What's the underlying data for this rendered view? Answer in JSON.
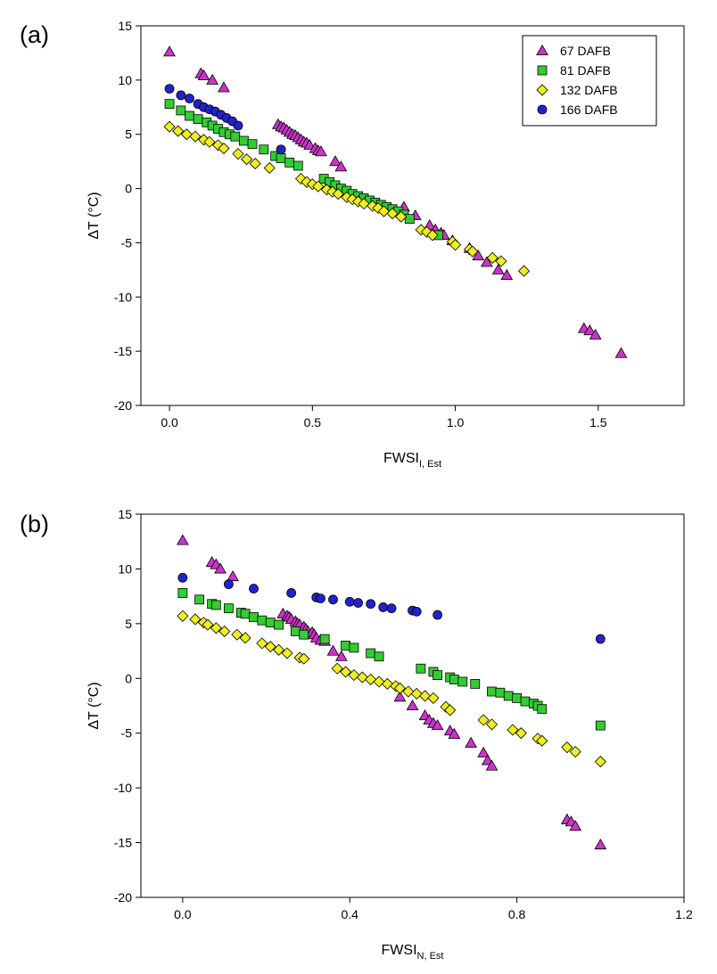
{
  "panels": [
    {
      "letter": "(a)",
      "xlabel": {
        "main": "FWSI",
        "sub": "I, Est"
      },
      "ylabel": "ΔT (°C)",
      "legend": "top-right"
    },
    {
      "letter": "(b)",
      "xlabel": {
        "main": "FWSI",
        "sub": "N, Est"
      },
      "ylabel": "ΔT (°C)",
      "legend": "none"
    }
  ],
  "series_styles": [
    {
      "name": "67 DAFB",
      "marker": "triangle",
      "color": "#cc33cc"
    },
    {
      "name": "81 DAFB",
      "marker": "square",
      "color": "#33cc33"
    },
    {
      "name": "132 DAFB",
      "marker": "diamond",
      "color": "#eeee22"
    },
    {
      "name": "166 DAFB",
      "marker": "circle",
      "color": "#2222cc"
    }
  ],
  "chart_data": [
    {
      "type": "scatter",
      "title": "",
      "xlabel": "FWSI I,Est",
      "ylabel": "ΔT (°C)",
      "xlim": [
        -0.1,
        1.8
      ],
      "ylim": [
        -20,
        15
      ],
      "xticks": [
        "0.0",
        "0.5",
        "1.0",
        "1.5"
      ],
      "yticks": [
        "-20",
        "-15",
        "-10",
        "-5",
        "0",
        "5",
        "10",
        "15"
      ],
      "legend_position": "top-right",
      "grid": false,
      "series": [
        {
          "name": "67 DAFB",
          "points": [
            [
              0.0,
              12.6
            ],
            [
              0.11,
              10.6
            ],
            [
              0.12,
              10.4
            ],
            [
              0.15,
              10.0
            ],
            [
              0.19,
              9.3
            ],
            [
              0.38,
              5.9
            ],
            [
              0.39,
              5.7
            ],
            [
              0.4,
              5.6
            ],
            [
              0.41,
              5.4
            ],
            [
              0.42,
              5.2
            ],
            [
              0.43,
              5.0
            ],
            [
              0.44,
              4.9
            ],
            [
              0.45,
              4.7
            ],
            [
              0.46,
              4.5
            ],
            [
              0.47,
              4.3
            ],
            [
              0.48,
              4.2
            ],
            [
              0.49,
              4.0
            ],
            [
              0.51,
              3.7
            ],
            [
              0.52,
              3.5
            ],
            [
              0.53,
              3.4
            ],
            [
              0.58,
              2.5
            ],
            [
              0.6,
              2.0
            ],
            [
              0.82,
              -1.7
            ],
            [
              0.86,
              -2.5
            ],
            [
              0.91,
              -3.4
            ],
            [
              0.93,
              -3.8
            ],
            [
              0.95,
              -4.1
            ],
            [
              0.96,
              -4.3
            ],
            [
              0.99,
              -4.8
            ],
            [
              1.05,
              -5.5
            ],
            [
              1.08,
              -6.2
            ],
            [
              1.11,
              -6.8
            ],
            [
              1.15,
              -7.5
            ],
            [
              1.18,
              -8.0
            ],
            [
              1.45,
              -12.9
            ],
            [
              1.47,
              -13.1
            ],
            [
              1.49,
              -13.5
            ],
            [
              1.58,
              -15.2
            ]
          ]
        },
        {
          "name": "81 DAFB",
          "points": [
            [
              0.0,
              7.8
            ],
            [
              0.04,
              7.2
            ],
            [
              0.07,
              6.7
            ],
            [
              0.1,
              6.4
            ],
            [
              0.13,
              6.1
            ],
            [
              0.15,
              5.8
            ],
            [
              0.17,
              5.5
            ],
            [
              0.19,
              5.2
            ],
            [
              0.21,
              5.0
            ],
            [
              0.23,
              4.8
            ],
            [
              0.26,
              4.4
            ],
            [
              0.29,
              4.1
            ],
            [
              0.33,
              3.6
            ],
            [
              0.37,
              3.0
            ],
            [
              0.39,
              2.8
            ],
            [
              0.42,
              2.4
            ],
            [
              0.45,
              2.1
            ],
            [
              0.54,
              0.9
            ],
            [
              0.56,
              0.6
            ],
            [
              0.58,
              0.3
            ],
            [
              0.6,
              0.0
            ],
            [
              0.62,
              -0.2
            ],
            [
              0.64,
              -0.5
            ],
            [
              0.66,
              -0.7
            ],
            [
              0.68,
              -0.9
            ],
            [
              0.7,
              -1.1
            ],
            [
              0.72,
              -1.3
            ],
            [
              0.74,
              -1.5
            ],
            [
              0.76,
              -1.7
            ],
            [
              0.78,
              -1.9
            ],
            [
              0.8,
              -2.1
            ],
            [
              0.82,
              -2.4
            ],
            [
              0.84,
              -2.8
            ],
            [
              0.94,
              -4.3
            ]
          ]
        },
        {
          "name": "132 DAFB",
          "points": [
            [
              0.0,
              5.7
            ],
            [
              0.03,
              5.3
            ],
            [
              0.06,
              5.0
            ],
            [
              0.09,
              4.8
            ],
            [
              0.12,
              4.5
            ],
            [
              0.14,
              4.3
            ],
            [
              0.17,
              4.0
            ],
            [
              0.19,
              3.7
            ],
            [
              0.24,
              3.2
            ],
            [
              0.27,
              2.7
            ],
            [
              0.3,
              2.3
            ],
            [
              0.35,
              1.9
            ],
            [
              0.46,
              0.9
            ],
            [
              0.48,
              0.6
            ],
            [
              0.5,
              0.4
            ],
            [
              0.52,
              0.2
            ],
            [
              0.55,
              -0.1
            ],
            [
              0.57,
              -0.3
            ],
            [
              0.59,
              -0.5
            ],
            [
              0.62,
              -0.8
            ],
            [
              0.64,
              -1.0
            ],
            [
              0.66,
              -1.2
            ],
            [
              0.68,
              -1.4
            ],
            [
              0.71,
              -1.6
            ],
            [
              0.73,
              -1.8
            ],
            [
              0.75,
              -2.1
            ],
            [
              0.78,
              -2.3
            ],
            [
              0.81,
              -2.6
            ],
            [
              0.88,
              -3.8
            ],
            [
              0.9,
              -4.0
            ],
            [
              0.92,
              -4.3
            ],
            [
              0.99,
              -4.9
            ],
            [
              1.0,
              -5.2
            ],
            [
              1.05,
              -5.6
            ],
            [
              1.06,
              -5.8
            ],
            [
              1.13,
              -6.4
            ],
            [
              1.16,
              -6.7
            ],
            [
              1.24,
              -7.6
            ]
          ]
        },
        {
          "name": "166 DAFB",
          "points": [
            [
              0.0,
              9.2
            ],
            [
              0.04,
              8.6
            ],
            [
              0.07,
              8.3
            ],
            [
              0.1,
              7.8
            ],
            [
              0.12,
              7.5
            ],
            [
              0.14,
              7.3
            ],
            [
              0.16,
              7.1
            ],
            [
              0.18,
              6.8
            ],
            [
              0.2,
              6.5
            ],
            [
              0.22,
              6.2
            ],
            [
              0.24,
              5.8
            ],
            [
              0.39,
              3.6
            ]
          ]
        }
      ]
    },
    {
      "type": "scatter",
      "title": "",
      "xlabel": "FWSI N,Est",
      "ylabel": "ΔT (°C)",
      "xlim": [
        -0.1,
        1.2
      ],
      "ylim": [
        -20,
        15
      ],
      "xticks": [
        "0.0",
        "0.4",
        "0.8",
        "1.2"
      ],
      "yticks": [
        "-20",
        "-15",
        "-10",
        "-5",
        "0",
        "5",
        "10",
        "15"
      ],
      "legend_position": "none",
      "grid": false,
      "series": [
        {
          "name": "67 DAFB",
          "points": [
            [
              0.0,
              12.6
            ],
            [
              0.07,
              10.6
            ],
            [
              0.08,
              10.4
            ],
            [
              0.09,
              10.0
            ],
            [
              0.12,
              9.3
            ],
            [
              0.24,
              5.9
            ],
            [
              0.25,
              5.7
            ],
            [
              0.255,
              5.6
            ],
            [
              0.26,
              5.4
            ],
            [
              0.27,
              5.2
            ],
            [
              0.275,
              5.0
            ],
            [
              0.28,
              4.9
            ],
            [
              0.29,
              4.7
            ],
            [
              0.295,
              4.5
            ],
            [
              0.3,
              4.3
            ],
            [
              0.31,
              4.2
            ],
            [
              0.315,
              4.0
            ],
            [
              0.32,
              3.7
            ],
            [
              0.33,
              3.5
            ],
            [
              0.34,
              3.4
            ],
            [
              0.36,
              2.5
            ],
            [
              0.38,
              2.0
            ],
            [
              0.52,
              -1.7
            ],
            [
              0.55,
              -2.5
            ],
            [
              0.58,
              -3.4
            ],
            [
              0.59,
              -3.8
            ],
            [
              0.6,
              -4.1
            ],
            [
              0.61,
              -4.3
            ],
            [
              0.64,
              -4.8
            ],
            [
              0.65,
              -5.1
            ],
            [
              0.69,
              -5.9
            ],
            [
              0.72,
              -6.8
            ],
            [
              0.73,
              -7.5
            ],
            [
              0.74,
              -8.0
            ],
            [
              0.92,
              -12.9
            ],
            [
              0.93,
              -13.1
            ],
            [
              0.94,
              -13.5
            ],
            [
              1.0,
              -15.2
            ]
          ]
        },
        {
          "name": "81 DAFB",
          "points": [
            [
              0.0,
              7.8
            ],
            [
              0.04,
              7.2
            ],
            [
              0.07,
              6.8
            ],
            [
              0.08,
              6.7
            ],
            [
              0.11,
              6.4
            ],
            [
              0.14,
              6.0
            ],
            [
              0.15,
              5.9
            ],
            [
              0.17,
              5.6
            ],
            [
              0.19,
              5.3
            ],
            [
              0.21,
              5.1
            ],
            [
              0.23,
              4.9
            ],
            [
              0.27,
              4.3
            ],
            [
              0.29,
              4.0
            ],
            [
              0.34,
              3.6
            ],
            [
              0.39,
              3.0
            ],
            [
              0.41,
              2.8
            ],
            [
              0.45,
              2.3
            ],
            [
              0.47,
              2.0
            ],
            [
              0.57,
              0.9
            ],
            [
              0.6,
              0.6
            ],
            [
              0.61,
              0.3
            ],
            [
              0.64,
              0.1
            ],
            [
              0.65,
              -0.1
            ],
            [
              0.67,
              -0.3
            ],
            [
              0.7,
              -0.5
            ],
            [
              0.74,
              -1.2
            ],
            [
              0.76,
              -1.3
            ],
            [
              0.78,
              -1.6
            ],
            [
              0.8,
              -1.8
            ],
            [
              0.82,
              -2.1
            ],
            [
              0.84,
              -2.3
            ],
            [
              0.85,
              -2.5
            ],
            [
              0.86,
              -2.8
            ],
            [
              1.0,
              -4.3
            ]
          ]
        },
        {
          "name": "132 DAFB",
          "points": [
            [
              0.0,
              5.7
            ],
            [
              0.03,
              5.4
            ],
            [
              0.05,
              5.1
            ],
            [
              0.06,
              4.9
            ],
            [
              0.08,
              4.6
            ],
            [
              0.1,
              4.3
            ],
            [
              0.13,
              4.0
            ],
            [
              0.15,
              3.7
            ],
            [
              0.19,
              3.2
            ],
            [
              0.21,
              2.9
            ],
            [
              0.23,
              2.6
            ],
            [
              0.25,
              2.3
            ],
            [
              0.28,
              1.9
            ],
            [
              0.29,
              1.8
            ],
            [
              0.37,
              0.9
            ],
            [
              0.39,
              0.6
            ],
            [
              0.41,
              0.3
            ],
            [
              0.43,
              0.1
            ],
            [
              0.45,
              -0.1
            ],
            [
              0.47,
              -0.3
            ],
            [
              0.49,
              -0.5
            ],
            [
              0.51,
              -0.7
            ],
            [
              0.52,
              -0.9
            ],
            [
              0.54,
              -1.2
            ],
            [
              0.56,
              -1.4
            ],
            [
              0.58,
              -1.6
            ],
            [
              0.6,
              -1.8
            ],
            [
              0.63,
              -2.6
            ],
            [
              0.64,
              -2.9
            ],
            [
              0.72,
              -3.8
            ],
            [
              0.74,
              -4.2
            ],
            [
              0.79,
              -4.7
            ],
            [
              0.81,
              -5.0
            ],
            [
              0.85,
              -5.5
            ],
            [
              0.86,
              -5.7
            ],
            [
              0.92,
              -6.3
            ],
            [
              0.94,
              -6.7
            ],
            [
              1.0,
              -7.6
            ]
          ]
        },
        {
          "name": "166 DAFB",
          "points": [
            [
              0.0,
              9.2
            ],
            [
              0.11,
              8.6
            ],
            [
              0.17,
              8.2
            ],
            [
              0.26,
              7.8
            ],
            [
              0.32,
              7.4
            ],
            [
              0.33,
              7.3
            ],
            [
              0.36,
              7.2
            ],
            [
              0.4,
              7.0
            ],
            [
              0.42,
              6.9
            ],
            [
              0.45,
              6.8
            ],
            [
              0.48,
              6.5
            ],
            [
              0.5,
              6.4
            ],
            [
              0.55,
              6.2
            ],
            [
              0.56,
              6.1
            ],
            [
              0.61,
              5.8
            ],
            [
              1.0,
              3.6
            ]
          ]
        }
      ]
    }
  ]
}
